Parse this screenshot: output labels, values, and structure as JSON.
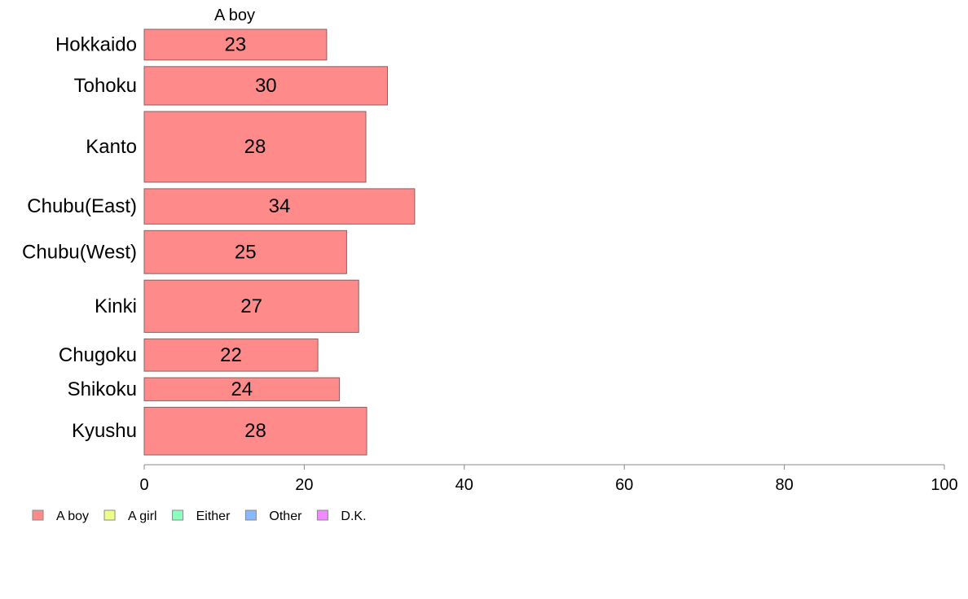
{
  "chart_data": {
    "type": "bar",
    "orientation": "horizontal",
    "header": "A boy",
    "categories": [
      "Hokkaido",
      "Tohoku",
      "Kanto",
      "Chubu(East)",
      "Chubu(West)",
      "Kinki",
      "Chugoku",
      "Shikoku",
      "Kyushu"
    ],
    "category_weights": [
      1.0,
      1.25,
      2.3,
      1.15,
      1.4,
      1.7,
      1.05,
      0.75,
      1.55
    ],
    "series": [
      {
        "name": "A boy",
        "color": "#FF8A8A",
        "values": [
          23,
          30,
          28,
          34,
          25,
          27,
          22,
          24,
          28
        ],
        "display_values": [
          22.8,
          30.4,
          27.7,
          33.8,
          25.3,
          26.8,
          21.7,
          24.4,
          27.8
        ]
      }
    ],
    "xlim": [
      0,
      100
    ],
    "xticks": [
      0,
      20,
      40,
      60,
      80,
      100
    ],
    "grid": false,
    "legend": {
      "position": "bottom-left",
      "items": [
        {
          "name": "A boy",
          "color": "#FF8A8A"
        },
        {
          "name": "A girl",
          "color": "#F0FF8A"
        },
        {
          "name": "Either",
          "color": "#8AFFBE"
        },
        {
          "name": "Other",
          "color": "#8AB8FF"
        },
        {
          "name": "D.K.",
          "color": "#F08AFF"
        }
      ]
    },
    "colors": {
      "bar_stroke": "#8A6060",
      "axis": "#888888"
    }
  }
}
